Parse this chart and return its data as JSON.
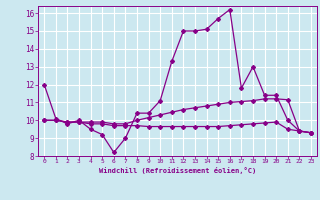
{
  "xlabel": "Windchill (Refroidissement éolien,°C)",
  "bg_color": "#cce8f0",
  "line_color": "#880088",
  "grid_color": "#ffffff",
  "xlim": [
    -0.5,
    23.5
  ],
  "ylim": [
    8,
    16.4
  ],
  "yticks": [
    8,
    9,
    10,
    11,
    12,
    13,
    14,
    15,
    16
  ],
  "xticks": [
    0,
    1,
    2,
    3,
    4,
    5,
    6,
    7,
    8,
    9,
    10,
    11,
    12,
    13,
    14,
    15,
    16,
    17,
    18,
    19,
    20,
    21,
    22,
    23
  ],
  "line1_x": [
    0,
    1,
    2,
    3,
    4,
    5,
    6,
    7,
    8,
    9,
    10,
    11,
    12,
    13,
    14,
    15,
    16,
    17,
    18,
    19,
    20,
    21,
    22,
    23
  ],
  "line1_y": [
    12.0,
    10.1,
    9.8,
    10.0,
    9.5,
    9.2,
    8.2,
    9.0,
    10.4,
    10.4,
    11.1,
    13.3,
    15.0,
    15.0,
    15.1,
    15.7,
    16.2,
    11.8,
    13.0,
    11.4,
    11.4,
    10.0,
    9.4,
    9.3
  ],
  "line2_x": [
    0,
    1,
    2,
    3,
    4,
    5,
    6,
    7,
    8,
    9,
    10,
    11,
    12,
    13,
    14,
    15,
    16,
    17,
    18,
    19,
    20,
    21,
    22,
    23
  ],
  "line2_y": [
    10.0,
    10.0,
    9.9,
    9.9,
    9.9,
    9.9,
    9.8,
    9.8,
    10.0,
    10.15,
    10.3,
    10.45,
    10.6,
    10.7,
    10.8,
    10.9,
    11.0,
    11.05,
    11.1,
    11.2,
    11.2,
    11.15,
    9.4,
    9.3
  ],
  "line3_x": [
    0,
    1,
    2,
    3,
    4,
    5,
    6,
    7,
    8,
    9,
    10,
    11,
    12,
    13,
    14,
    15,
    16,
    17,
    18,
    19,
    20,
    21,
    22,
    23
  ],
  "line3_y": [
    10.0,
    10.0,
    9.9,
    9.9,
    9.8,
    9.8,
    9.7,
    9.7,
    9.7,
    9.65,
    9.65,
    9.65,
    9.65,
    9.65,
    9.65,
    9.65,
    9.7,
    9.75,
    9.8,
    9.85,
    9.9,
    9.5,
    9.4,
    9.3
  ]
}
